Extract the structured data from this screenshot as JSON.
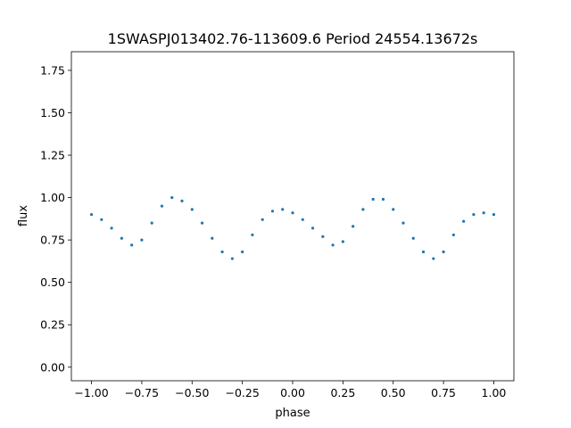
{
  "chart_data": {
    "type": "scatter",
    "title": "1SWASPJ013402.76-113609.6 Period 24554.13672s",
    "xlabel": "phase",
    "ylabel": "flux",
    "xlim": [
      -1.1,
      1.1
    ],
    "ylim": [
      -0.08,
      1.86
    ],
    "grid": false,
    "legend": "none",
    "marker_color": "#1f77b4",
    "x_ticks": [
      {
        "value": -1.0,
        "label": "−1.00"
      },
      {
        "value": -0.75,
        "label": "−0.75"
      },
      {
        "value": -0.5,
        "label": "−0.50"
      },
      {
        "value": -0.25,
        "label": "−0.25"
      },
      {
        "value": 0.0,
        "label": "0.00"
      },
      {
        "value": 0.25,
        "label": "0.25"
      },
      {
        "value": 0.5,
        "label": "0.50"
      },
      {
        "value": 0.75,
        "label": "0.75"
      },
      {
        "value": 1.0,
        "label": "1.00"
      }
    ],
    "y_ticks": [
      {
        "value": 0.0,
        "label": "0.00"
      },
      {
        "value": 0.25,
        "label": "0.25"
      },
      {
        "value": 0.5,
        "label": "0.50"
      },
      {
        "value": 0.75,
        "label": "0.75"
      },
      {
        "value": 1.0,
        "label": "1.00"
      },
      {
        "value": 1.25,
        "label": "1.25"
      },
      {
        "value": 1.5,
        "label": "1.50"
      },
      {
        "value": 1.75,
        "label": "1.75"
      }
    ],
    "series": [
      {
        "x": [
          -1.0,
          -0.95,
          -0.9,
          -0.85,
          -0.8,
          -0.75,
          -0.7,
          -0.65,
          -0.6,
          -0.55,
          -0.5,
          -0.45,
          -0.4,
          -0.35,
          -0.3,
          -0.25,
          -0.2,
          -0.15,
          -0.1,
          -0.05,
          0.0,
          0.05,
          0.1,
          0.15,
          0.2,
          0.25,
          0.3,
          0.35,
          0.4,
          0.45,
          0.5,
          0.55,
          0.6,
          0.65,
          0.7,
          0.75,
          0.8,
          0.85,
          0.9,
          0.95,
          1.0
        ],
        "y": [
          0.9,
          0.87,
          0.82,
          0.76,
          0.72,
          0.75,
          0.85,
          0.95,
          1.0,
          0.98,
          0.93,
          0.85,
          0.76,
          0.68,
          0.64,
          0.68,
          0.78,
          0.87,
          0.92,
          0.93,
          0.91,
          0.87,
          0.82,
          0.77,
          0.72,
          0.74,
          0.83,
          0.93,
          0.99,
          0.99,
          0.93,
          0.85,
          0.76,
          0.68,
          0.64,
          0.68,
          0.78,
          0.86,
          0.9,
          0.91,
          0.9
        ]
      }
    ]
  }
}
